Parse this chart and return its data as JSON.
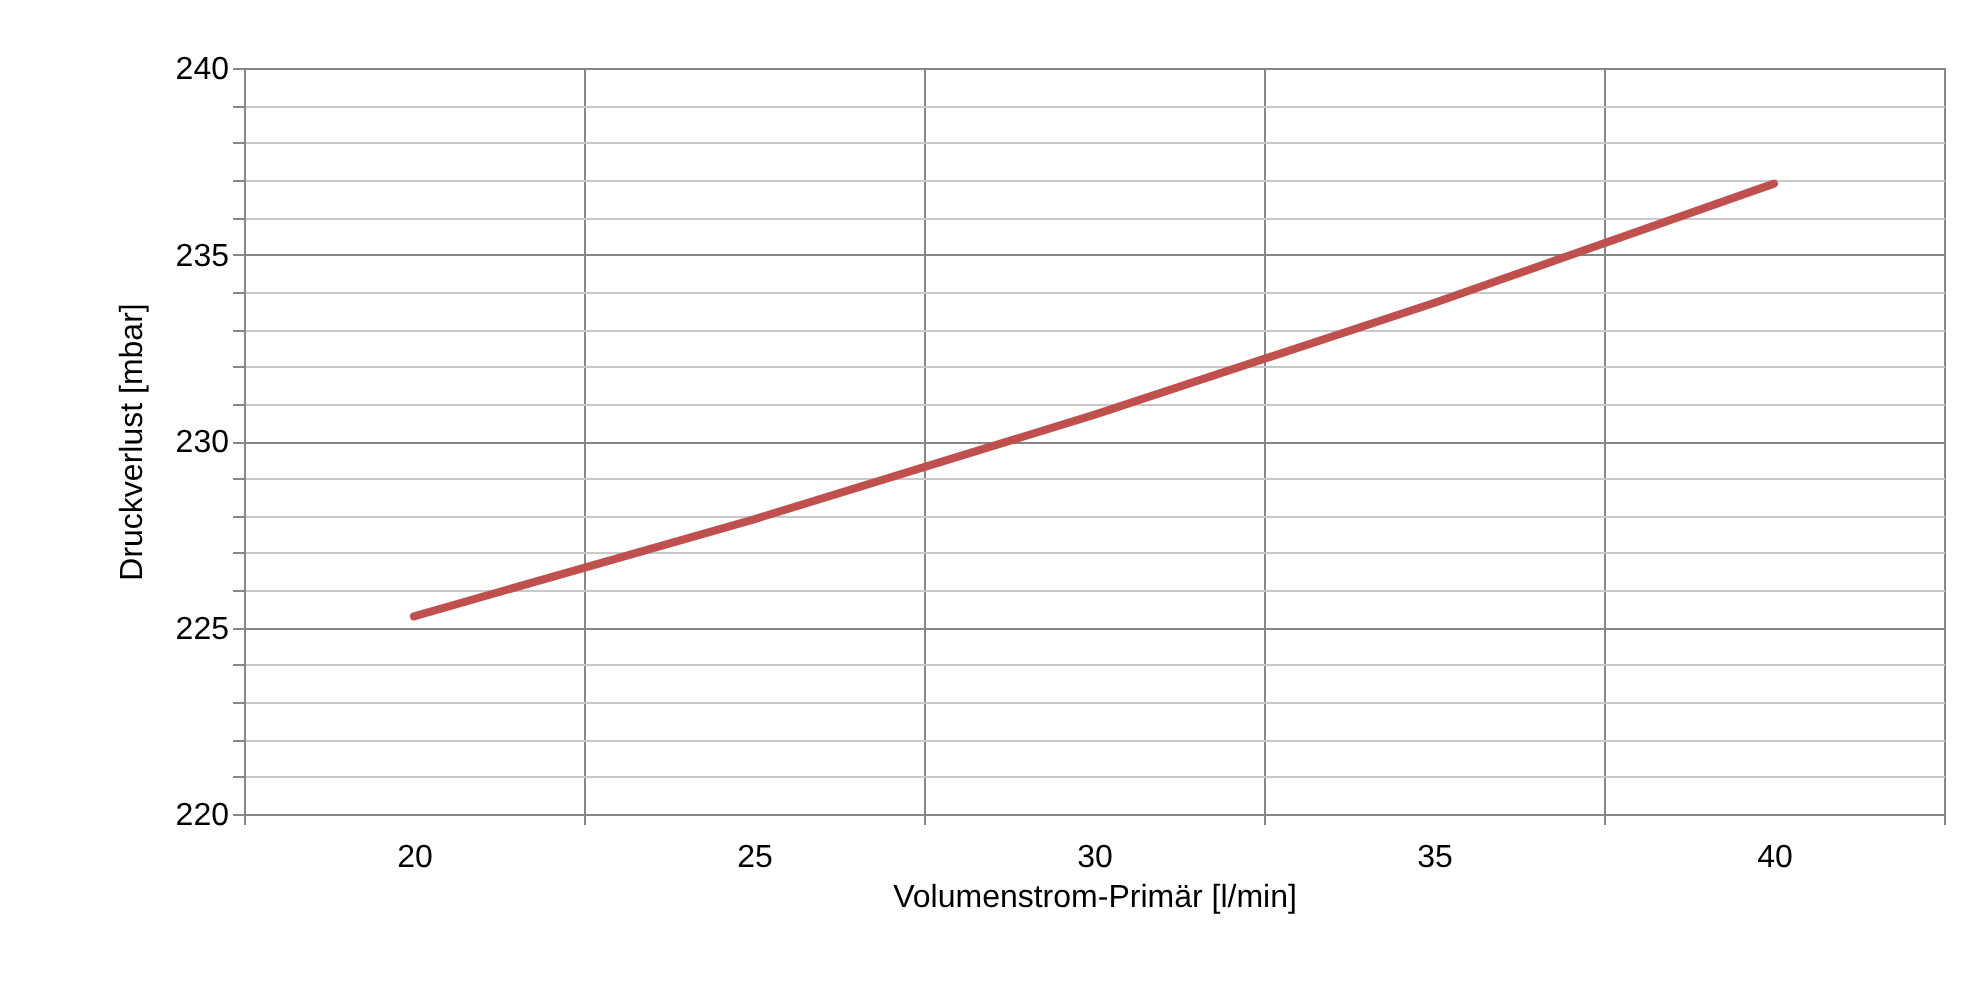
{
  "chart_data": {
    "type": "line",
    "xlabel": "Volumenstrom-Primär  [l/min]",
    "ylabel": "Druckverlust [mbar]",
    "categories": [
      "20",
      "25",
      "30",
      "35",
      "40"
    ],
    "series": [
      {
        "color": "#c0504d",
        "values": [
          225.3,
          227.9,
          230.7,
          233.7,
          236.9
        ]
      }
    ],
    "ylim": [
      220,
      240
    ],
    "yticks": [
      220,
      {
        "value": 221,
        "label": null
      },
      {
        "value": 222,
        "label": null
      },
      {
        "value": 223,
        "label": null
      },
      {
        "value": 224,
        "label": null
      },
      225,
      {
        "value": 226,
        "label": null
      },
      {
        "value": 227,
        "label": null
      },
      {
        "value": 228,
        "label": null
      },
      {
        "value": 229,
        "label": null
      },
      230,
      {
        "value": 231,
        "label": null
      },
      {
        "value": 232,
        "label": null
      },
      {
        "value": 233,
        "label": null
      },
      {
        "value": 234,
        "label": null
      },
      235,
      {
        "value": 236,
        "label": null
      },
      {
        "value": 237,
        "label": null
      },
      {
        "value": 238,
        "label": null
      },
      {
        "value": 239,
        "label": null
      },
      240
    ],
    "grid": true,
    "marker": "none",
    "line_style": "solid"
  }
}
